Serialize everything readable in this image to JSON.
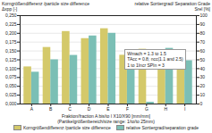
{
  "chart_data": {
    "type": "bar",
    "categories": [
      "A",
      "B",
      "C",
      "D",
      "E",
      "F",
      "G",
      "H",
      "I"
    ],
    "series": [
      {
        "name": "Korngrößendifferenz /particle size difference",
        "color": "#D4C96A",
        "values": [
          0.105,
          0.16,
          0.205,
          0.185,
          0.213,
          0.138,
          0.155,
          0.13,
          0.123
        ]
      },
      {
        "name": "relative Sortiergrad/separation grade",
        "color": "#7BBFB5",
        "axis": "y2",
        "values": [
          36,
          50,
          55,
          77,
          80,
          49,
          2,
          63,
          49
        ]
      }
    ],
    "xlabel": "Fraktion/fraction A bis/to I   X10/X90 [mm/mm]\n(Partikelgrößenbereich/size range: 1/to/to 25mm)",
    "ylabel": "Korngrößendifferenz /particle size difference\nΔxpp [-]",
    "y2label": "relative Sortiergrad/ Separation Grade\nSrel [%]",
    "annotation": "Wmach = 1.3 to 1.5\nTAcc = 0.8; ncc(1.1 and 2.5)\n1 to 1Incr SPIn = 3",
    "ylim": [
      0.0,
      0.25
    ],
    "yticks": [
      {
        "value": 0.0,
        "label": "0,000"
      },
      {
        "value": 0.025,
        "label": "0,025"
      },
      {
        "value": 0.05,
        "label": "0,050"
      },
      {
        "value": 0.075,
        "label": "0,075"
      },
      {
        "value": 0.1,
        "label": "0,100"
      },
      {
        "value": 0.125,
        "label": "0,125"
      },
      {
        "value": 0.15,
        "label": "0,150"
      },
      {
        "value": 0.175,
        "label": "0,175"
      },
      {
        "value": 0.2,
        "label": "0,200"
      },
      {
        "value": 0.225,
        "label": "0,225"
      },
      {
        "value": 0.25,
        "label": "0,250"
      }
    ],
    "y2lim": [
      0,
      100
    ],
    "y2ticks": [
      0,
      10,
      20,
      30,
      40,
      50,
      60,
      70,
      80,
      90,
      100
    ],
    "grid": true,
    "legend": "bottom"
  }
}
